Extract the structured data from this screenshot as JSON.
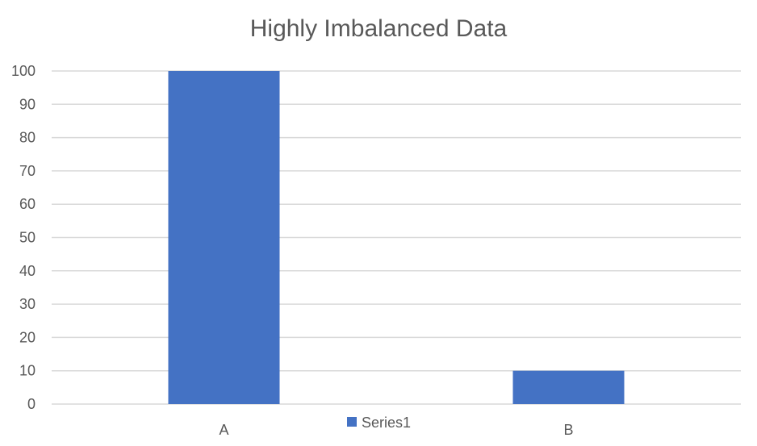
{
  "chart_data": {
    "type": "bar",
    "title": "Highly Imbalanced Data",
    "categories": [
      "A",
      "B"
    ],
    "series": [
      {
        "name": "Series1",
        "values": [
          100,
          10
        ],
        "color": "#4472C4"
      }
    ],
    "xlabel": "",
    "ylabel": "",
    "ylim": [
      0,
      100
    ],
    "yticks": [
      "0",
      "10",
      "20",
      "30",
      "40",
      "50",
      "60",
      "70",
      "80",
      "90",
      "100"
    ],
    "grid": true,
    "legend": "bottom",
    "colors": {
      "grid": "#D9D9D9",
      "text": "#595959"
    }
  }
}
